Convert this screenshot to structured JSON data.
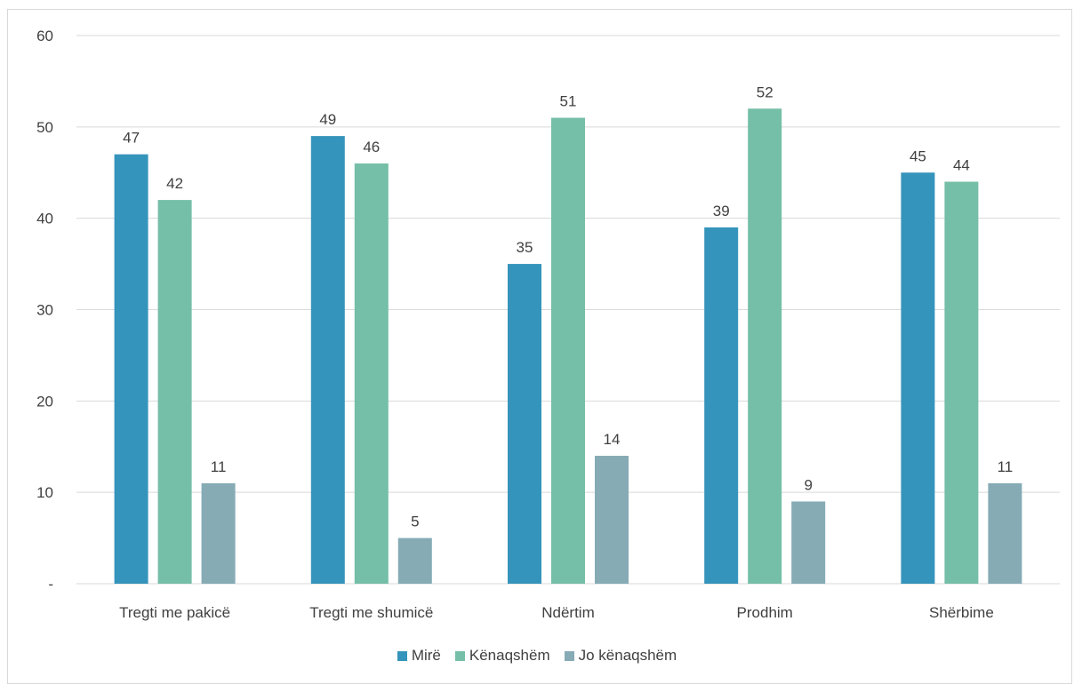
{
  "chart_data": {
    "type": "bar",
    "categories": [
      "Tregti me pakicë",
      "Tregti me shumicë",
      "Ndërtim",
      "Prodhim",
      "Shërbime"
    ],
    "series": [
      {
        "name": "Mirë",
        "color": "#3594bb",
        "values": [
          47,
          49,
          35,
          39,
          45
        ]
      },
      {
        "name": "Kënaqshëm",
        "color": "#75bea7",
        "values": [
          42,
          46,
          51,
          52,
          44
        ]
      },
      {
        "name": "Jo kënaqshëm",
        "color": "#86abb5",
        "values": [
          11,
          5,
          14,
          9,
          11
        ]
      }
    ],
    "ylim": [
      0,
      60
    ],
    "yticks": [
      {
        "value": 0,
        "label": "-"
      },
      {
        "value": 10,
        "label": "10"
      },
      {
        "value": 20,
        "label": "20"
      },
      {
        "value": 30,
        "label": "30"
      },
      {
        "value": 40,
        "label": "40"
      },
      {
        "value": 50,
        "label": "50"
      },
      {
        "value": 60,
        "label": "60"
      }
    ],
    "grid": true,
    "data_labels": true,
    "legend_position": "bottom"
  }
}
